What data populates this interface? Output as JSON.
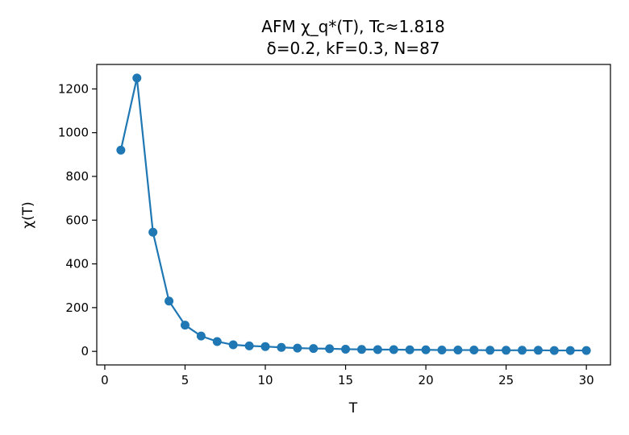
{
  "chart_data": {
    "type": "line",
    "title_line1": "AFM χ_q*(T), Tc≈1.818",
    "title_line2": "δ=0.2, kF=0.3, N=87",
    "xlabel": "T",
    "ylabel": "χ(T)",
    "xlim": [
      -0.5,
      31.5
    ],
    "ylim": [
      -62,
      1312
    ],
    "xticks": [
      0,
      5,
      10,
      15,
      20,
      25,
      30
    ],
    "yticks": [
      0,
      200,
      400,
      600,
      800,
      1000,
      1200
    ],
    "grid": false,
    "legend": "none",
    "series": [
      {
        "color": "#1f77b4",
        "x": [
          1,
          2,
          3,
          4,
          5,
          6,
          7,
          8,
          9,
          10,
          11,
          12,
          13,
          14,
          15,
          16,
          17,
          18,
          19,
          20,
          21,
          22,
          23,
          24,
          25,
          26,
          27,
          28,
          29,
          30
        ],
        "values": [
          920,
          1250,
          545,
          230,
          120,
          70,
          45,
          30,
          25,
          22,
          18,
          15,
          13,
          12,
          10,
          9,
          8,
          8,
          7,
          7,
          6,
          6,
          6,
          5,
          5,
          5,
          5,
          4,
          4,
          4
        ]
      }
    ]
  }
}
